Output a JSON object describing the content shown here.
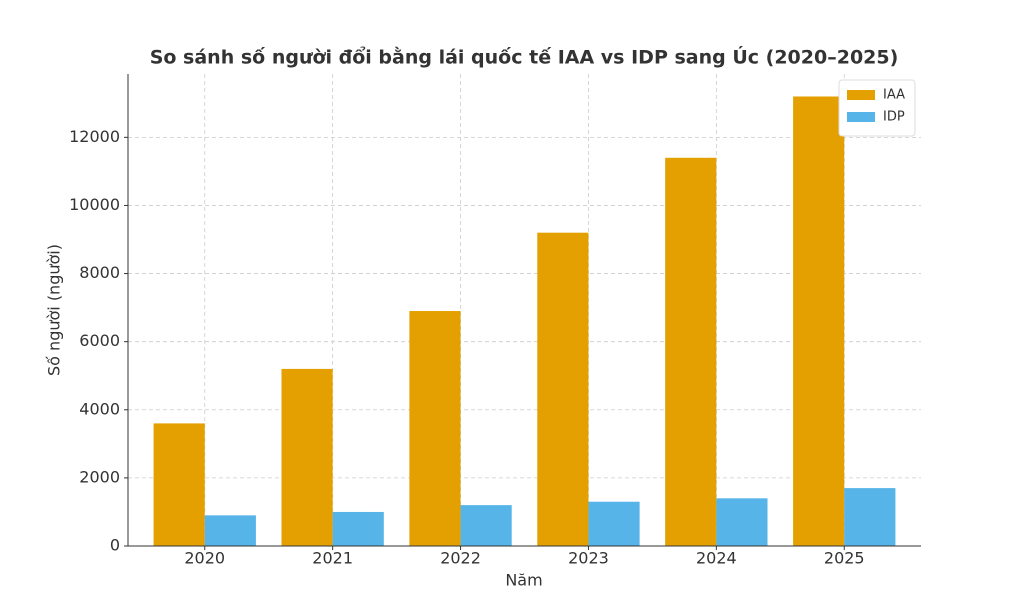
{
  "chart_data": {
    "type": "bar",
    "title": "So sánh số người đổi bằng lái quốc tế IAA vs IDP sang Úc (2020–2025)",
    "x_label": "Năm",
    "y_label": "Số người (người)",
    "categories": [
      "2020",
      "2021",
      "2022",
      "2023",
      "2024",
      "2025"
    ],
    "series": [
      {
        "name": "IAA",
        "color": "#e3a000",
        "values": [
          3600,
          5200,
          6900,
          9200,
          11400,
          13200
        ]
      },
      {
        "name": "IDP",
        "color": "#56b4e9",
        "values": [
          900,
          1000,
          1200,
          1300,
          1400,
          1700
        ]
      }
    ],
    "ylim": [
      0,
      13860
    ],
    "yticks": [
      0,
      2000,
      4000,
      6000,
      8000,
      10000,
      12000
    ],
    "grid": true,
    "legend": "upper right"
  }
}
